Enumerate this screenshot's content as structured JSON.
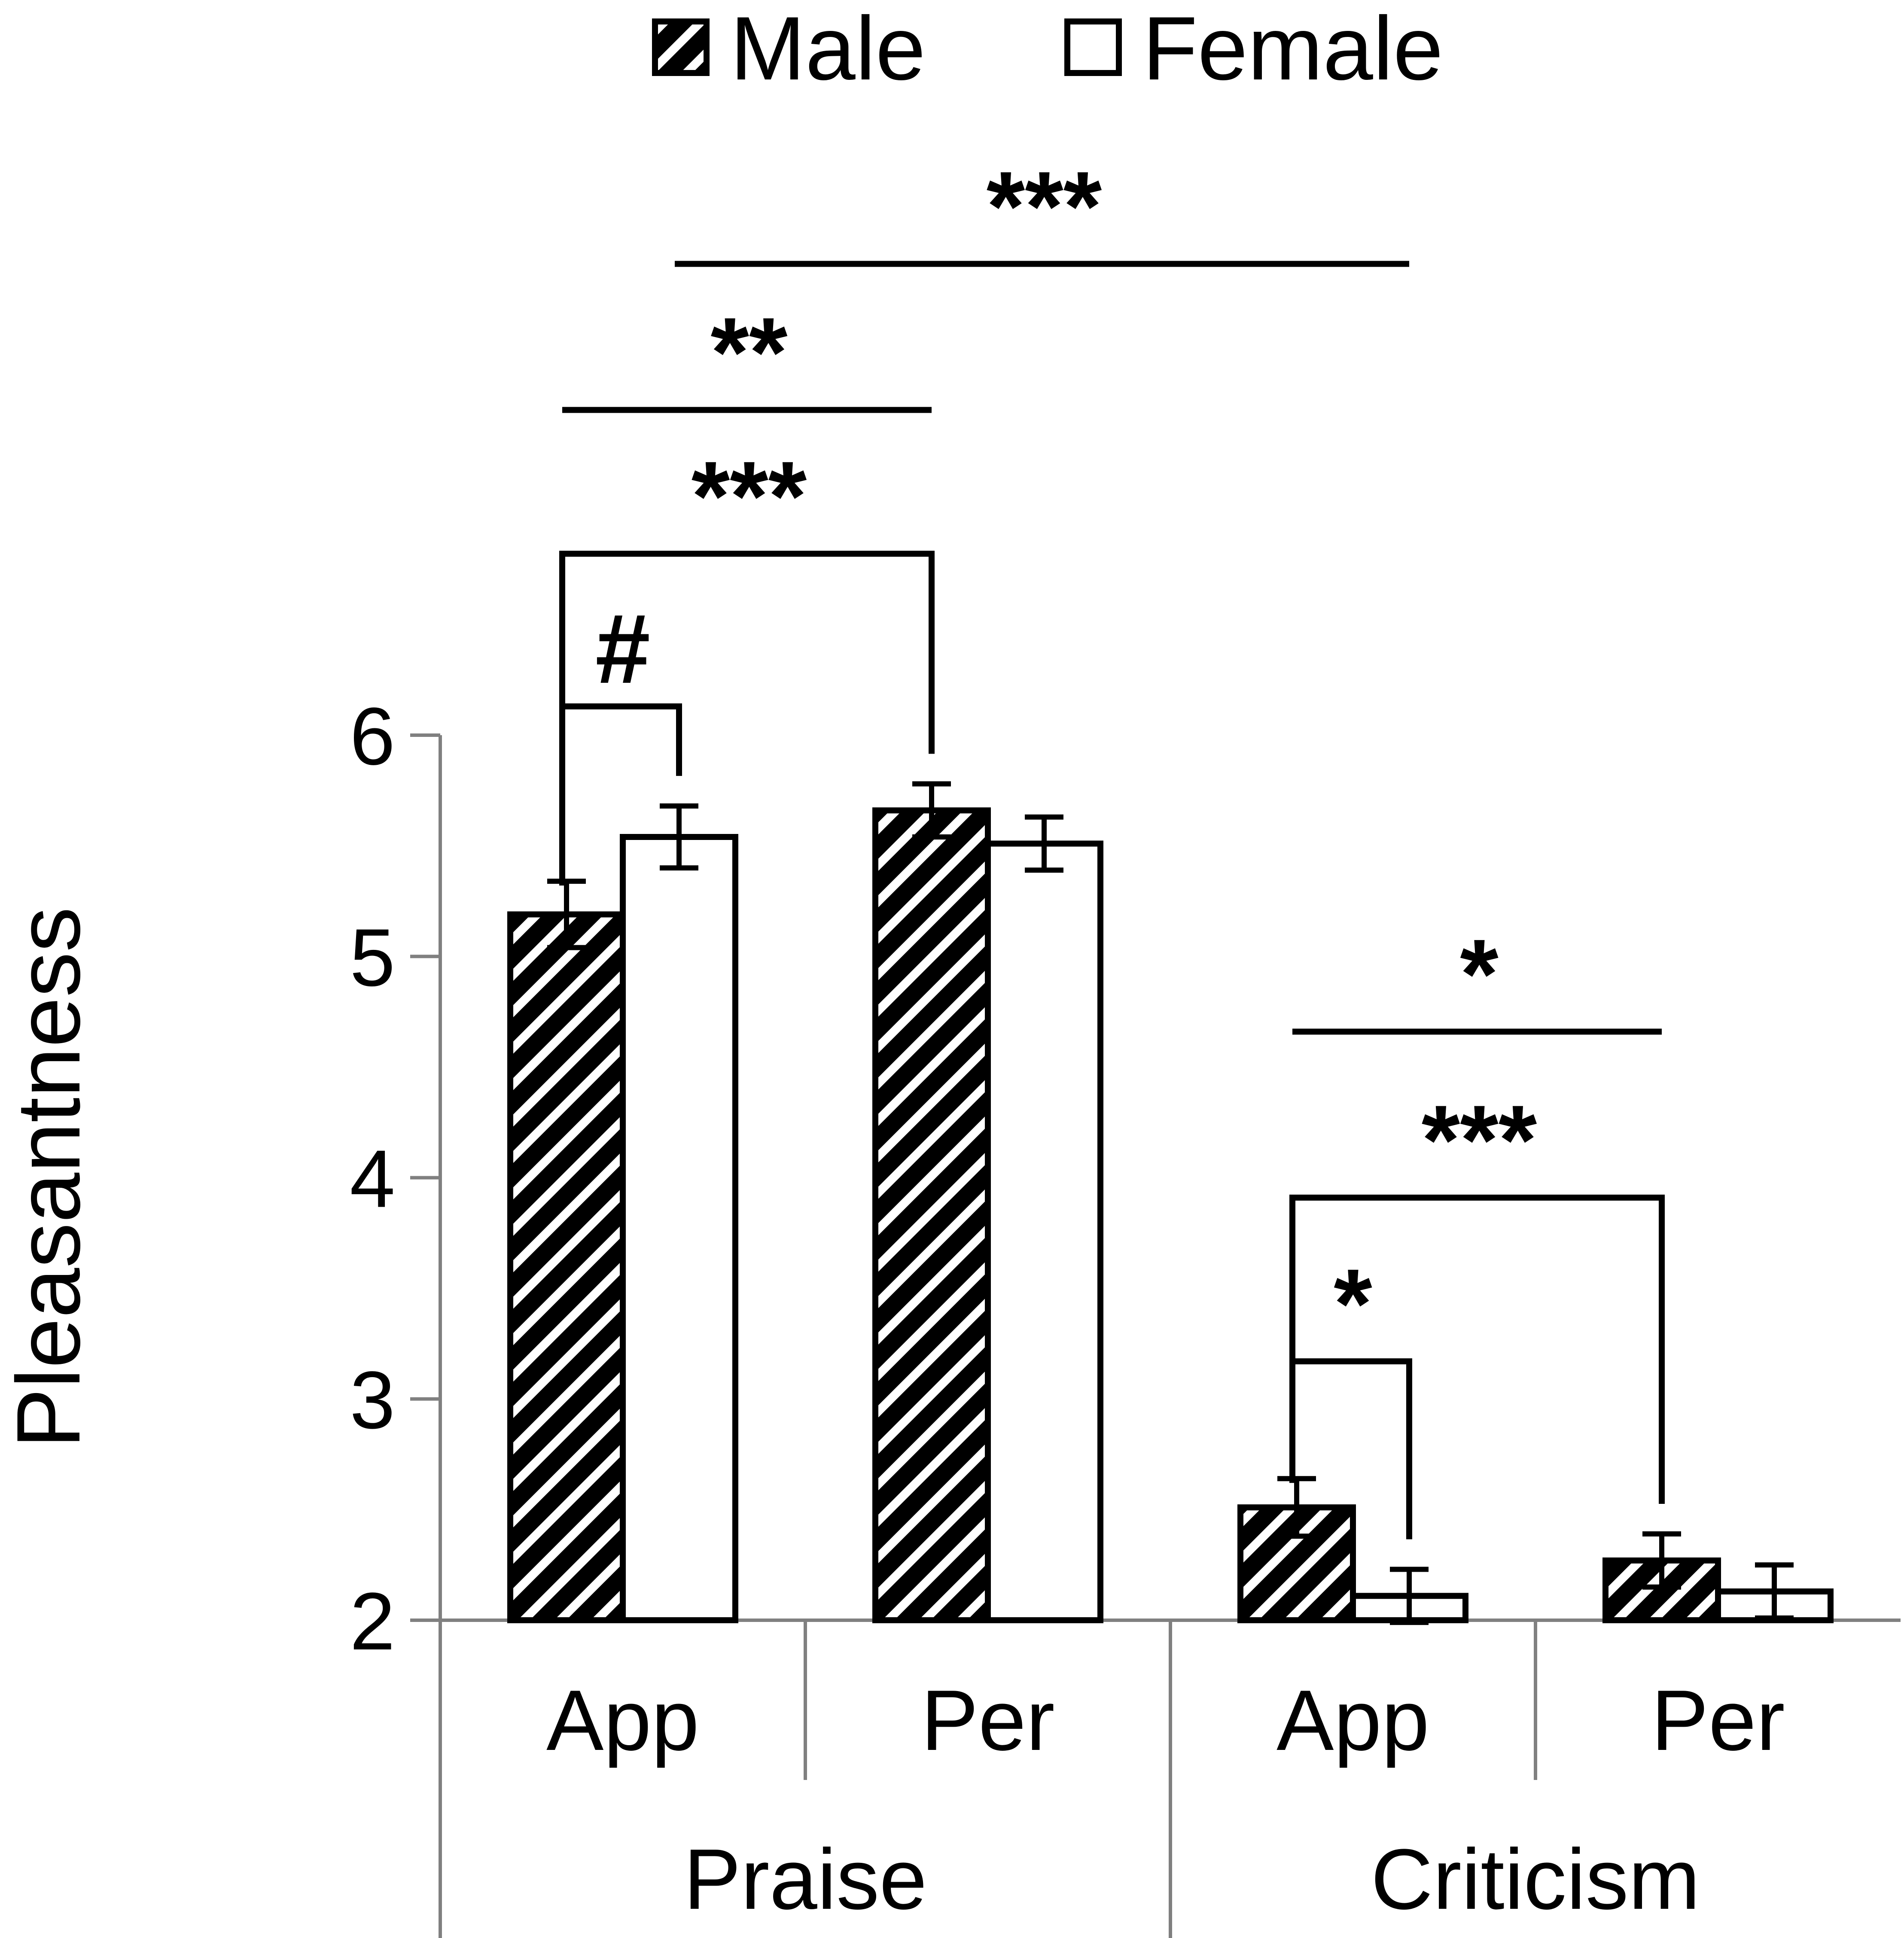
{
  "chart_data": {
    "type": "bar",
    "ylabel": "Pleasantness",
    "xlabel": "",
    "ylim": [
      2,
      6
    ],
    "yticks": [
      2,
      3,
      4,
      5,
      6
    ],
    "groups": [
      {
        "label": "Praise",
        "categories": [
          "App",
          "Per"
        ]
      },
      {
        "label": "Criticism",
        "categories": [
          "App",
          "Per"
        ]
      }
    ],
    "categories": [
      "App",
      "Per",
      "App",
      "Per"
    ],
    "series": [
      {
        "name": "Male",
        "pattern": "diagonal-hatch",
        "values": [
          5.19,
          5.66,
          2.51,
          2.27
        ],
        "errors": [
          0.15,
          0.12,
          0.13,
          0.12
        ]
      },
      {
        "name": "Female",
        "pattern": "white",
        "values": [
          5.54,
          5.51,
          2.11,
          2.13
        ],
        "errors": [
          0.14,
          0.12,
          0.12,
          0.12
        ]
      }
    ],
    "legend_position": "top",
    "grid": false,
    "colors": {
      "bar_outline": "#000000",
      "hatch": "#000000",
      "axis": "#808080",
      "female_fill": "#ffffff"
    },
    "significance": [
      {
        "label": "#",
        "from": {
          "category": 0,
          "series": 0
        },
        "to": {
          "category": 0,
          "series": 1
        },
        "style": "bracket",
        "y": 6.13
      },
      {
        "label": "***",
        "from": {
          "category": 0,
          "series": 0
        },
        "to": {
          "category": 1,
          "series": 0
        },
        "style": "bracket",
        "y": 6.82
      },
      {
        "label": "**",
        "from": {
          "category": 0,
          "series": 0
        },
        "to": {
          "category": 1,
          "series": 0
        },
        "style": "line",
        "y": 7.47
      },
      {
        "label": "***",
        "from": {
          "category": 0,
          "series": 1
        },
        "to": {
          "category": 2,
          "series": 1
        },
        "style": "line",
        "y": 8.13
      },
      {
        "label": "*",
        "from": {
          "category": 2,
          "series": 0
        },
        "to": {
          "category": 2,
          "series": 1
        },
        "style": "bracket",
        "y": 3.17
      },
      {
        "label": "***",
        "from": {
          "category": 2,
          "series": 0
        },
        "to": {
          "category": 3,
          "series": 0
        },
        "style": "bracket",
        "y": 3.91
      },
      {
        "label": "*",
        "from": {
          "category": 2,
          "series": 0
        },
        "to": {
          "category": 3,
          "series": 0
        },
        "style": "line",
        "y": 4.66
      }
    ]
  }
}
